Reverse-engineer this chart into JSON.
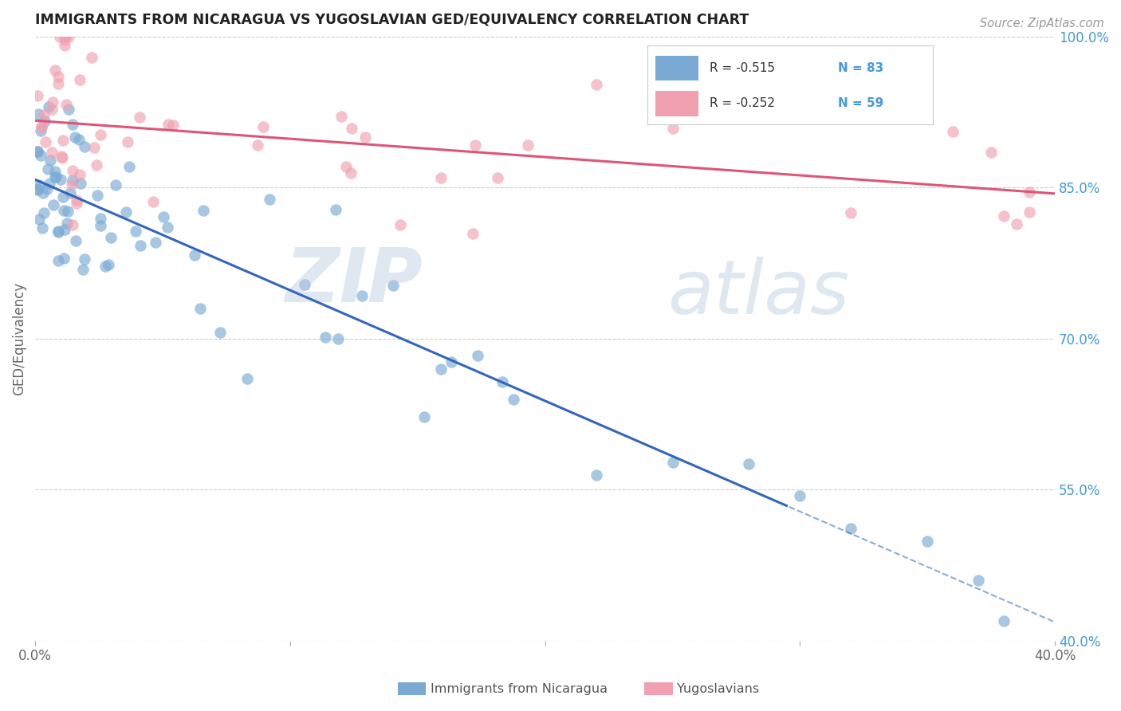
{
  "title": "IMMIGRANTS FROM NICARAGUA VS YUGOSLAVIAN GED/EQUIVALENCY CORRELATION CHART",
  "source": "Source: ZipAtlas.com",
  "ylabel_label": "GED/Equivalency",
  "legend_label1": "Immigrants from Nicaragua",
  "legend_label2": "Yugoslavians",
  "R1": -0.515,
  "N1": 83,
  "R2": -0.252,
  "N2": 59,
  "xlim": [
    0.0,
    0.4
  ],
  "ylim": [
    0.4,
    1.0
  ],
  "xticks": [
    0.0,
    0.1,
    0.2,
    0.3,
    0.4
  ],
  "yticks": [
    0.4,
    0.55,
    0.7,
    0.85,
    1.0
  ],
  "ytick_labels": [
    "40.0%",
    "55.0%",
    "70.0%",
    "85.0%",
    "100.0%"
  ],
  "xtick_labels": [
    "0.0%",
    "",
    "",
    "",
    "40.0%"
  ],
  "color_blue": "#7aaad4",
  "color_pink": "#f0a0b0",
  "line_blue": "#3366bb",
  "line_pink": "#dd5577",
  "watermark_zip": "ZIP",
  "watermark_atlas": "atlas"
}
